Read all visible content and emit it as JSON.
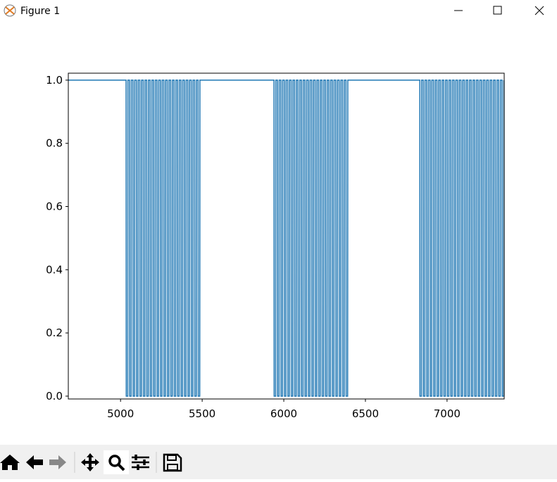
{
  "window": {
    "title": "Figure 1"
  },
  "chart_data": {
    "type": "line",
    "x": [
      4680,
      5034,
      5035,
      5044,
      5045,
      5055,
      5056,
      5065,
      5066,
      5076,
      5077,
      5086,
      5087,
      5097,
      5098,
      5107,
      5108,
      5118,
      5119,
      5128,
      5129,
      5139,
      5140,
      5149,
      5150,
      5160,
      5161,
      5170,
      5171,
      5181,
      5182,
      5191,
      5192,
      5202,
      5203,
      5212,
      5213,
      5223,
      5224,
      5233,
      5234,
      5244,
      5245,
      5254,
      5255,
      5265,
      5266,
      5275,
      5276,
      5286,
      5287,
      5296,
      5297,
      5307,
      5308,
      5317,
      5318,
      5328,
      5329,
      5338,
      5339,
      5349,
      5350,
      5359,
      5360,
      5370,
      5371,
      5380,
      5381,
      5391,
      5392,
      5401,
      5402,
      5412,
      5413,
      5422,
      5423,
      5433,
      5434,
      5443,
      5444,
      5454,
      5455,
      5464,
      5465,
      5475,
      5476,
      5485,
      5486,
      5940,
      5941,
      5950,
      5951,
      5961,
      5962,
      5971,
      5972,
      5982,
      5983,
      5992,
      5993,
      6003,
      6004,
      6013,
      6014,
      6024,
      6025,
      6034,
      6035,
      6045,
      6046,
      6055,
      6056,
      6066,
      6067,
      6076,
      6077,
      6087,
      6088,
      6097,
      6098,
      6108,
      6109,
      6118,
      6119,
      6129,
      6130,
      6139,
      6140,
      6150,
      6151,
      6160,
      6161,
      6171,
      6172,
      6181,
      6182,
      6192,
      6193,
      6202,
      6203,
      6213,
      6214,
      6223,
      6224,
      6234,
      6235,
      6244,
      6245,
      6255,
      6256,
      6265,
      6266,
      6276,
      6277,
      6286,
      6287,
      6297,
      6298,
      6307,
      6308,
      6318,
      6319,
      6328,
      6329,
      6339,
      6340,
      6349,
      6350,
      6360,
      6361,
      6370,
      6371,
      6381,
      6382,
      6391,
      6392,
      6833,
      6834,
      6843,
      6844,
      6854,
      6855,
      6864,
      6865,
      6875,
      6876,
      6885,
      6886,
      6896,
      6897,
      6906,
      6907,
      6917,
      6918,
      6927,
      6928,
      6938,
      6939,
      6948,
      6949,
      6959,
      6960,
      6969,
      6970,
      6980,
      6981,
      6990,
      6991,
      7001,
      7002,
      7011,
      7012,
      7022,
      7023,
      7032,
      7033,
      7043,
      7044,
      7053,
      7054,
      7064,
      7065,
      7074,
      7075,
      7085,
      7086,
      7095,
      7096,
      7106,
      7107,
      7116,
      7117,
      7127,
      7128,
      7137,
      7138,
      7148,
      7149,
      7158,
      7159,
      7169,
      7170,
      7179,
      7180,
      7190,
      7191,
      7200,
      7201,
      7211,
      7212,
      7221,
      7222,
      7232,
      7233,
      7242,
      7243,
      7253,
      7254,
      7263,
      7264,
      7274,
      7275,
      7284,
      7285,
      7295,
      7296,
      7305,
      7306,
      7316,
      7317,
      7326,
      7327,
      7337,
      7338,
      7347,
      7348
    ],
    "series": [
      {
        "color": "#1f77b4",
        "values": [
          1,
          1,
          0,
          0,
          1,
          1,
          0,
          0,
          1,
          1,
          0,
          0,
          1,
          1,
          0,
          0,
          1,
          1,
          0,
          0,
          1,
          1,
          0,
          0,
          1,
          1,
          0,
          0,
          1,
          1,
          0,
          0,
          1,
          1,
          0,
          0,
          1,
          1,
          0,
          0,
          1,
          1,
          0,
          0,
          1,
          1,
          0,
          0,
          1,
          1,
          0,
          0,
          1,
          1,
          0,
          0,
          1,
          1,
          0,
          0,
          1,
          1,
          0,
          0,
          1,
          1,
          0,
          0,
          1,
          1,
          0,
          0,
          1,
          1,
          0,
          0,
          1,
          1,
          0,
          0,
          1,
          1,
          0,
          0,
          1,
          1,
          0,
          0,
          1,
          1,
          0,
          0,
          1,
          1,
          0,
          0,
          1,
          1,
          0,
          0,
          1,
          1,
          0,
          0,
          1,
          1,
          0,
          0,
          1,
          1,
          0,
          0,
          1,
          1,
          0,
          0,
          1,
          1,
          0,
          0,
          1,
          1,
          0,
          0,
          1,
          1,
          0,
          0,
          1,
          1,
          0,
          0,
          1,
          1,
          0,
          0,
          1,
          1,
          0,
          0,
          1,
          1,
          0,
          0,
          1,
          1,
          0,
          0,
          1,
          1,
          0,
          0,
          1,
          1,
          0,
          0,
          1,
          1,
          0,
          0,
          1,
          1,
          0,
          0,
          1,
          1,
          0,
          0,
          1,
          1,
          0,
          0,
          1,
          1,
          0,
          0,
          1,
          1,
          0,
          0,
          1,
          1,
          0,
          0,
          1,
          1,
          0,
          0,
          1,
          1,
          0,
          0,
          1,
          1,
          0,
          0,
          1,
          1,
          0,
          0,
          1,
          1,
          0,
          0,
          1,
          1,
          0,
          0,
          1,
          1,
          0,
          0,
          1,
          1,
          0,
          0,
          1,
          1,
          0,
          0,
          1,
          1,
          0,
          0,
          1,
          1,
          0,
          0,
          1,
          1,
          0,
          0,
          1,
          1,
          0,
          0,
          1,
          1,
          0,
          0,
          1,
          1,
          0,
          0,
          1,
          1,
          0,
          0,
          1,
          1,
          0,
          0,
          1,
          1,
          0,
          0,
          1,
          1,
          0,
          0,
          1,
          1,
          0,
          0,
          1,
          1,
          0,
          0,
          1,
          1,
          0,
          0,
          1,
          1,
          0,
          0,
          1
        ]
      }
    ],
    "xlim": [
      4680,
      7350
    ],
    "xticks": [
      5000,
      5500,
      6000,
      6500,
      7000
    ],
    "ylim": [
      -0.009,
      1.022
    ],
    "yticks": [
      {
        "value": 0,
        "label": "0.0"
      },
      0.2,
      0.4,
      0.6,
      0.8,
      {
        "value": 1,
        "label": "1.0"
      }
    ]
  }
}
